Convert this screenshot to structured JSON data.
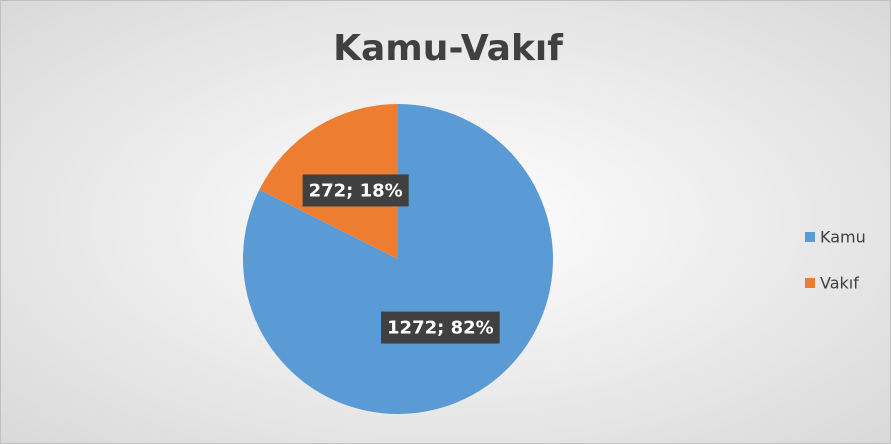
{
  "chart_data": {
    "type": "pie",
    "title": "Kamu-Vakıf",
    "categories": [
      "Kamu",
      "Vakıf"
    ],
    "values": [
      1272,
      272
    ],
    "value_labels": [
      "1272; 82%",
      "272; 18%"
    ],
    "colors": [
      "#5b9bd5",
      "#ed7d31"
    ],
    "legend": "right"
  }
}
